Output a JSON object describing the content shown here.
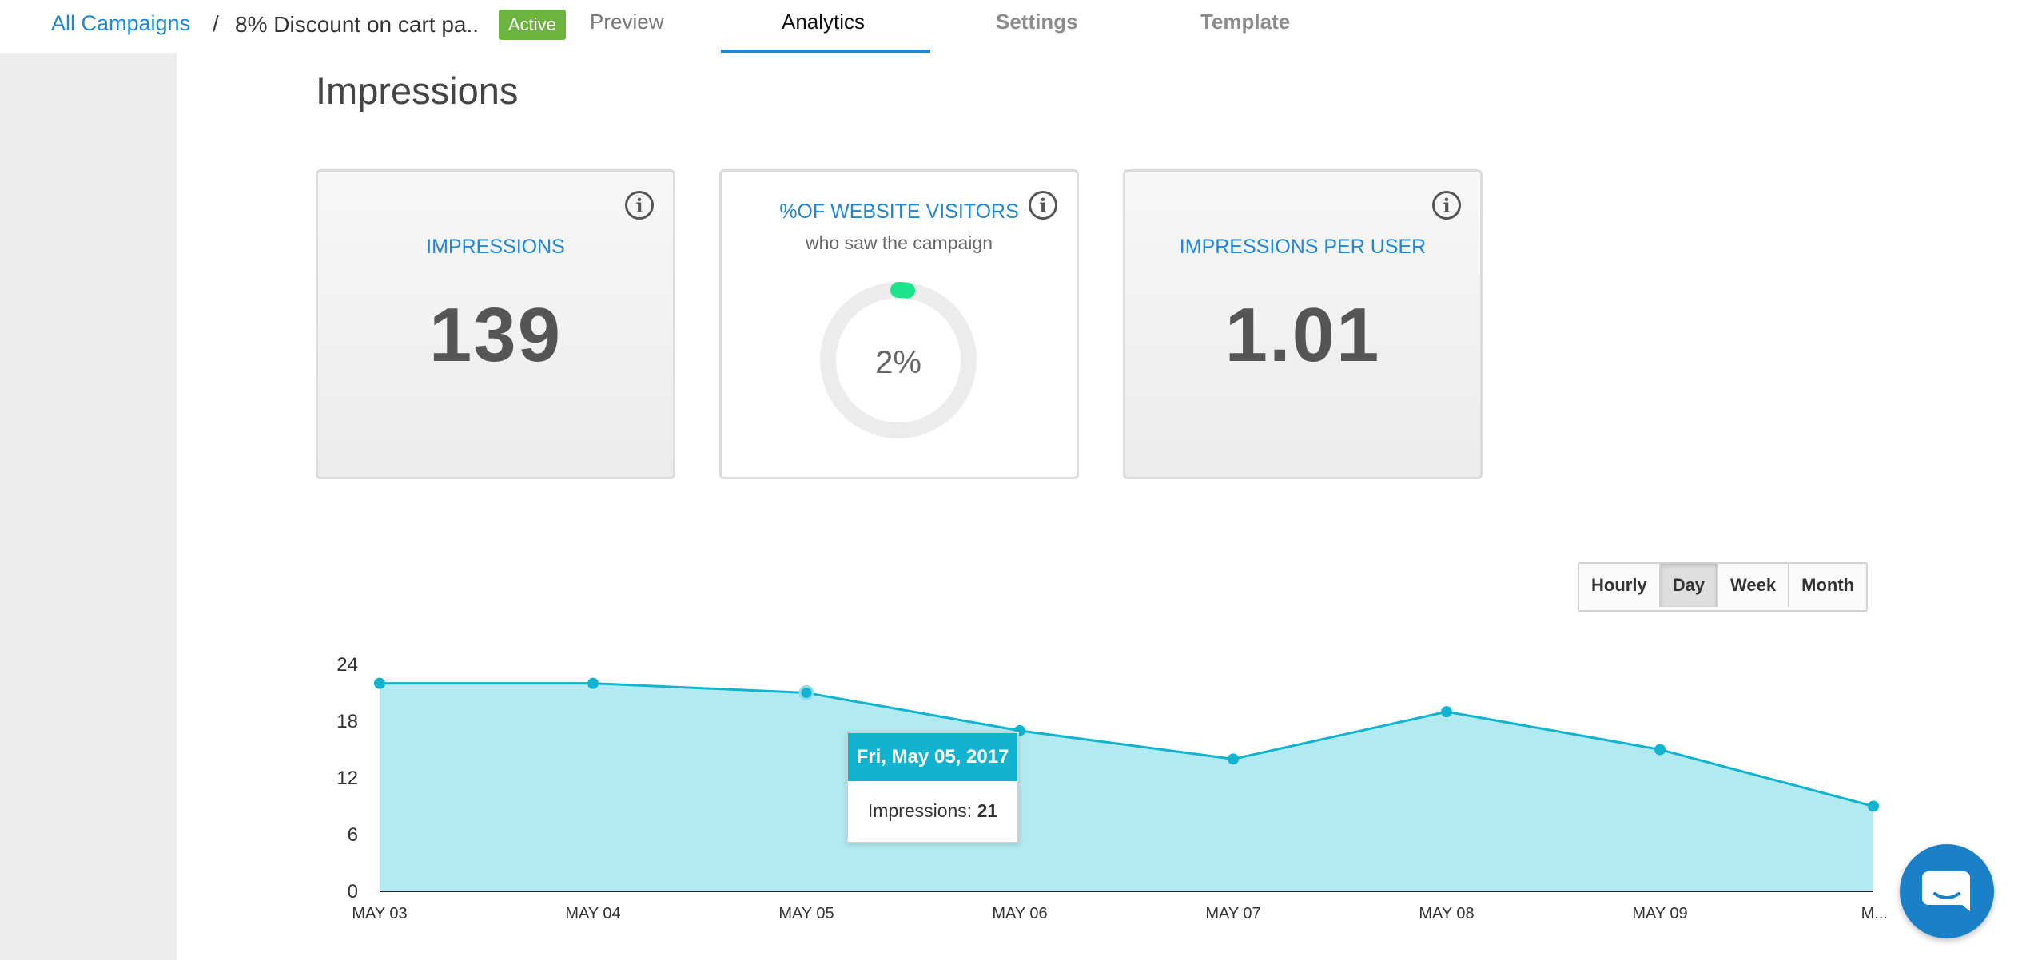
{
  "nav": {
    "breadcrumb_link": "All Campaigns",
    "breadcrumb_separator": "/",
    "campaign_title": "8% Discount on cart pa..",
    "status": "Active",
    "tabs": [
      {
        "label": "Preview"
      },
      {
        "label": "Analytics",
        "active": true
      },
      {
        "label": "Settings"
      },
      {
        "label": "Template"
      }
    ]
  },
  "section_title": "Impressions",
  "cards": {
    "impressions": {
      "label": "IMPRESSIONS",
      "value": "139",
      "icon": "info-icon"
    },
    "visitors": {
      "label": "%OF WEBSITE VISITORS",
      "sub": "who saw the campaign",
      "value": "2%",
      "fraction": 0.02,
      "icon": "info-icon"
    },
    "per_user": {
      "label": "IMPRESSIONS PER USER",
      "value": "1.01",
      "icon": "info-icon"
    }
  },
  "range_buttons": [
    {
      "label": "Hourly"
    },
    {
      "label": "Day",
      "active": true
    },
    {
      "label": "Week"
    },
    {
      "label": "Month"
    }
  ],
  "chart_data": {
    "type": "area",
    "categories": [
      "MAY 03",
      "MAY 04",
      "MAY 05",
      "MAY 06",
      "MAY 07",
      "MAY 08",
      "MAY 09",
      "M..."
    ],
    "series": [
      {
        "name": "Impressions",
        "values": [
          22,
          22,
          21,
          17,
          14,
          19,
          15,
          9
        ]
      }
    ],
    "ylim": [
      0,
      24
    ],
    "yticks": [
      0,
      6,
      12,
      18,
      24
    ],
    "grid": false,
    "color": "#12b3cf",
    "fill": "#b2eaf1",
    "tooltip": {
      "title": "Fri, May 05, 2017",
      "label": "Impressions:",
      "value": "21"
    }
  },
  "chat_icon": "chat-bubble-icon"
}
